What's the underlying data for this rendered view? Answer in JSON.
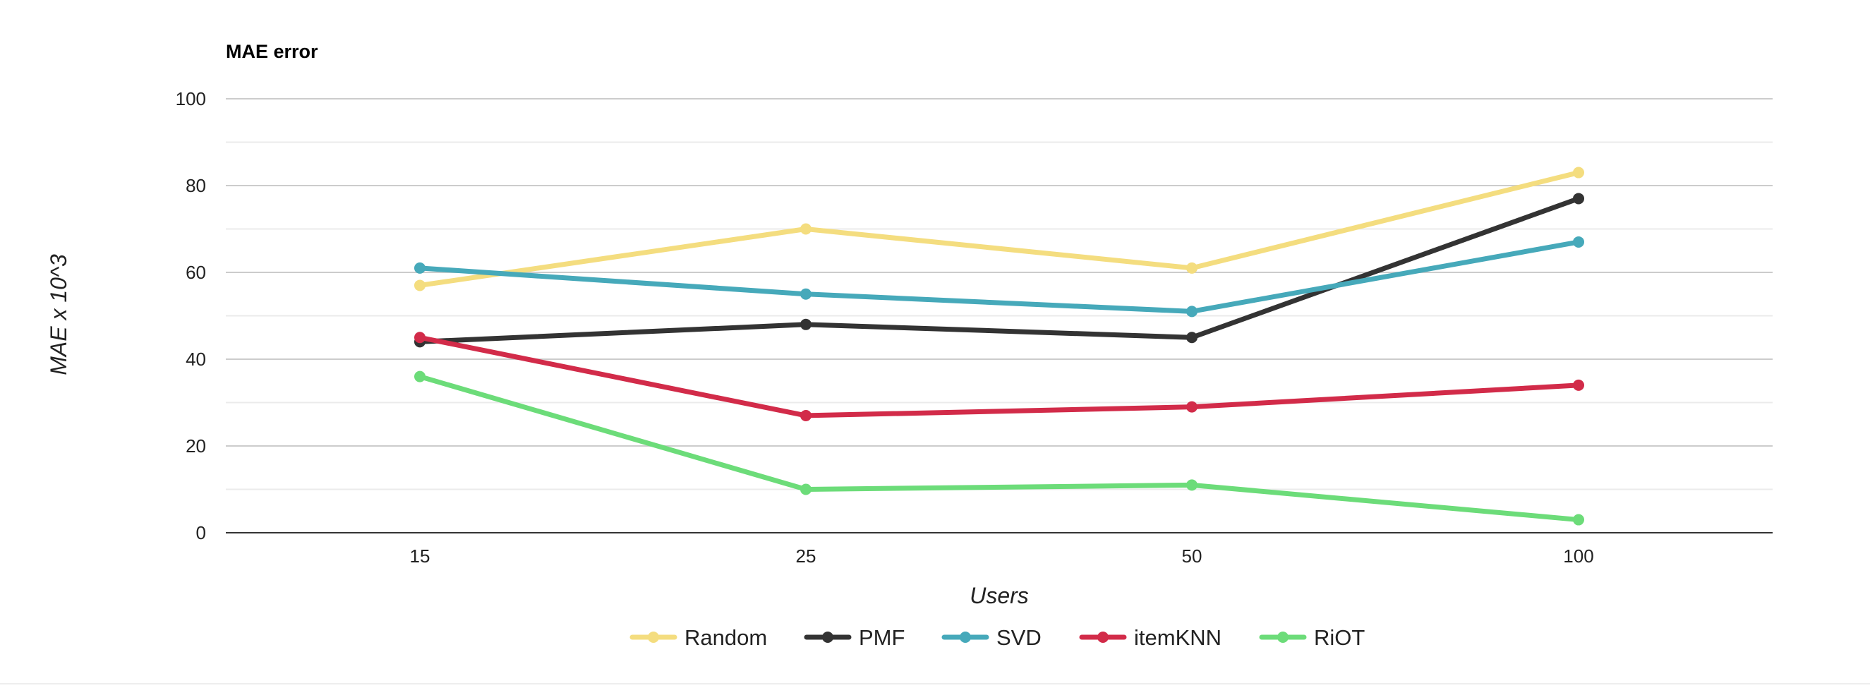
{
  "chart_data": {
    "type": "line",
    "title": "MAE error",
    "xlabel": "Users",
    "ylabel": "MAE x 10^3",
    "categories": [
      "15",
      "25",
      "50",
      "100"
    ],
    "ylim": [
      0,
      100
    ],
    "yticks": [
      "0",
      "20",
      "40",
      "60",
      "80",
      "100"
    ],
    "grid": true,
    "legend": "bottom",
    "series": [
      {
        "name": "Random",
        "color": "#f4dd7f",
        "values": [
          57,
          70,
          61,
          83
        ]
      },
      {
        "name": "PMF",
        "color": "#333333",
        "values": [
          44,
          48,
          45,
          77
        ]
      },
      {
        "name": "SVD",
        "color": "#46a9ba",
        "values": [
          61,
          55,
          51,
          67
        ]
      },
      {
        "name": "itemKNN",
        "color": "#d22b49",
        "values": [
          45,
          27,
          29,
          34
        ]
      },
      {
        "name": "RiOT",
        "color": "#6cdc79",
        "values": [
          36,
          10,
          11,
          3
        ]
      }
    ]
  }
}
